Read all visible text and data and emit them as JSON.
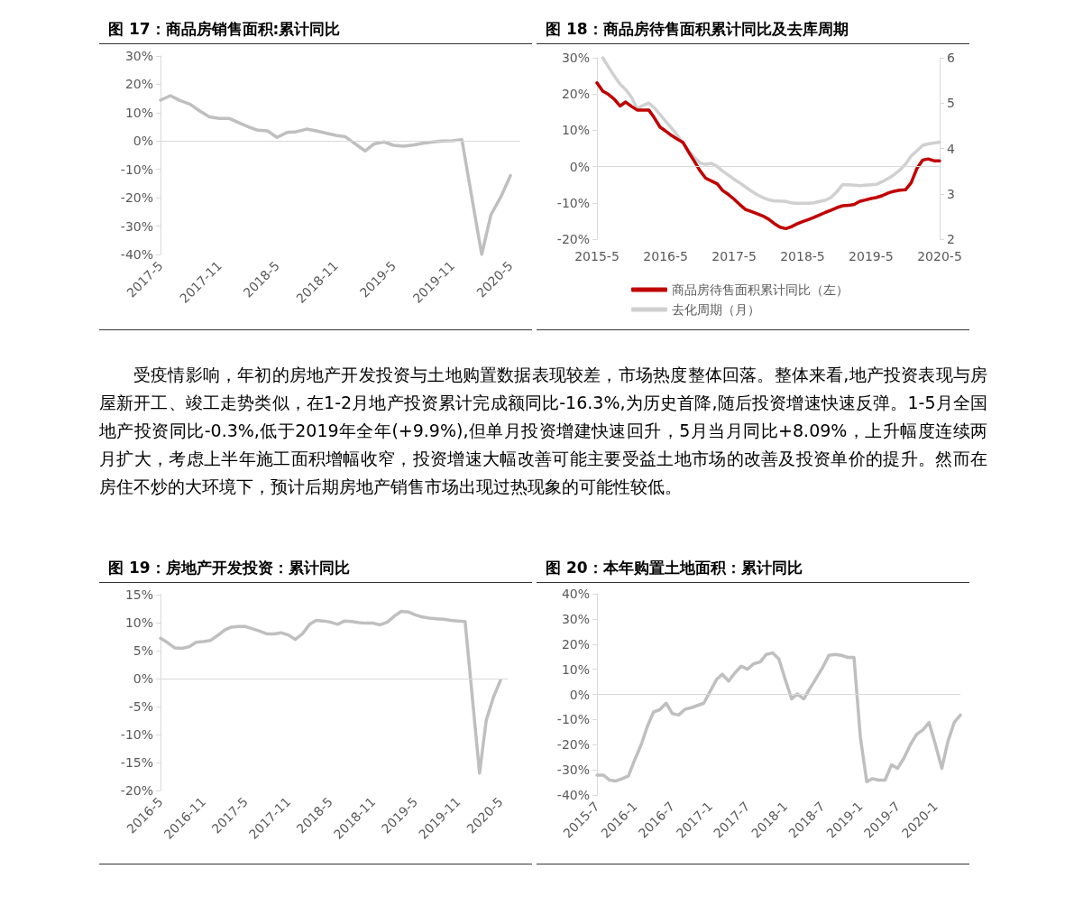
{
  "chart_data": [
    {
      "type": "line",
      "title": "图 17：商品房销售面积:累计同比",
      "x": [
        "2017-05",
        "2017-06",
        "2017-07",
        "2017-08",
        "2017-09",
        "2017-10",
        "2017-11",
        "2017-12",
        "2018-02",
        "2018-03",
        "2018-04",
        "2018-05",
        "2018-06",
        "2018-07",
        "2018-08",
        "2018-09",
        "2018-10",
        "2018-11",
        "2018-12",
        "2019-02",
        "2019-03",
        "2019-04",
        "2019-05",
        "2019-06",
        "2019-07",
        "2019-08",
        "2019-09",
        "2019-10",
        "2019-11",
        "2019-12",
        "2020-02",
        "2020-03",
        "2020-04",
        "2020-05"
      ],
      "series": [
        {
          "color": "#bfbfbf",
          "values": [
            14.4,
            16.0,
            14.3,
            13.0,
            10.6,
            8.5,
            8.0,
            8.0,
            5.0,
            3.8,
            3.6,
            1.3,
            3.0,
            3.3,
            4.2,
            3.6,
            2.8,
            2.0,
            1.5,
            -3.5,
            -1.0,
            -0.3,
            -1.5,
            -1.8,
            -1.4,
            -0.8,
            -0.3,
            0,
            0.1,
            0.5,
            -40,
            -26,
            -19.7,
            -12.2
          ]
        }
      ],
      "xlim": [
        "2017-05",
        "2020-06"
      ],
      "xticks": [
        {
          "value": "2017-05",
          "label": "2017-5"
        },
        {
          "value": "2017-11",
          "label": "2017-11"
        },
        {
          "value": "2018-05",
          "label": "2018-5"
        },
        {
          "value": "2018-11",
          "label": "2018-11"
        },
        {
          "value": "2019-05",
          "label": "2019-5"
        },
        {
          "value": "2019-11",
          "label": "2019-11"
        },
        {
          "value": "2020-05",
          "label": "2020-5"
        }
      ],
      "ylim": [
        -40,
        30
      ],
      "yticks": [
        {
          "value": -40,
          "label": "-40%"
        },
        {
          "value": -30,
          "label": "-30%"
        },
        {
          "value": -20,
          "label": "-20%"
        },
        {
          "value": -10,
          "label": "-10%"
        },
        {
          "value": 0,
          "label": "0%"
        },
        {
          "value": 10,
          "label": "10%"
        },
        {
          "value": 20,
          "label": "20%"
        },
        {
          "value": 30,
          "label": "30%"
        }
      ],
      "ref_lines": [
        {
          "axis": "y",
          "value": 0,
          "color": "#d9d9d9"
        }
      ]
    },
    {
      "type": "line",
      "title": "图 18：商品房待售面积累计同比及去库周期",
      "x": [
        "2015-05",
        "2015-06",
        "2015-07",
        "2015-08",
        "2015-09",
        "2015-10",
        "2015-11",
        "2015-12",
        "2016-01",
        "2016-02",
        "2016-03",
        "2016-04",
        "2016-05",
        "2016-06",
        "2016-07",
        "2016-08",
        "2016-09",
        "2016-10",
        "2016-11",
        "2016-12",
        "2017-01",
        "2017-02",
        "2017-03",
        "2017-04",
        "2017-05",
        "2017-06",
        "2017-07",
        "2017-08",
        "2017-09",
        "2017-10",
        "2017-11",
        "2017-12",
        "2018-01",
        "2018-02",
        "2018-03",
        "2018-04",
        "2018-05",
        "2018-06",
        "2018-07",
        "2018-08",
        "2018-09",
        "2018-10",
        "2018-11",
        "2018-12",
        "2019-01",
        "2019-02",
        "2019-03",
        "2019-04",
        "2019-05",
        "2019-06",
        "2019-07",
        "2019-08",
        "2019-09",
        "2019-10",
        "2019-11",
        "2019-12",
        "2020-01",
        "2020-02",
        "2020-03",
        "2020-04",
        "2020-05"
      ],
      "series": [
        {
          "name": "商品房待售面积累计同比（左）",
          "color": "#c00000",
          "values": [
            23.1,
            20.8,
            19.9,
            18.6,
            16.7,
            17.8,
            16.6,
            15.6,
            15.6,
            15.6,
            13.5,
            10.9,
            9.8,
            8.6,
            7.6,
            6.7,
            4.0,
            1.5,
            -1.2,
            -3.2,
            -4.0,
            -4.8,
            -6.6,
            -7.7,
            -9.0,
            -10.5,
            -11.8,
            -12.4,
            -13.0,
            -13.6,
            -14.5,
            -15.7,
            -16.7,
            -17.1,
            -16.6,
            -15.8,
            -15.2,
            -14.6,
            -14.0,
            -13.3,
            -12.6,
            -12.0,
            -11.3,
            -10.8,
            -10.7,
            -10.4,
            -9.6,
            -9.2,
            -8.8,
            -8.5,
            -8.0,
            -7.3,
            -6.8,
            -6.5,
            -6.4,
            -4.5,
            -0.5,
            1.8,
            2.1,
            1.6,
            1.6
          ]
        },
        {
          "name": "去化周期（月）",
          "color": "#d0d0d0",
          "axis": "y2",
          "values": [
            null,
            6.0,
            5.8,
            5.6,
            5.42,
            5.3,
            5.13,
            4.88,
            4.95,
            5.0,
            4.9,
            4.75,
            4.6,
            4.45,
            4.3,
            4.12,
            3.95,
            3.8,
            3.68,
            3.65,
            3.67,
            3.6,
            3.5,
            3.41,
            3.32,
            3.24,
            3.15,
            3.06,
            2.98,
            2.92,
            2.87,
            2.84,
            2.84,
            2.83,
            2.8,
            2.79,
            2.79,
            2.79,
            2.8,
            2.83,
            2.86,
            2.92,
            3.05,
            3.2,
            3.2,
            3.19,
            3.18,
            3.19,
            3.2,
            3.21,
            3.27,
            3.34,
            3.42,
            3.52,
            3.65,
            3.83,
            3.95,
            4.07,
            4.1,
            4.12,
            4.14
          ]
        }
      ],
      "xlim": [
        "2015-05",
        "2020-05"
      ],
      "xticks": [
        {
          "value": "2015-05",
          "label": "2015-5"
        },
        {
          "value": "2016-05",
          "label": "2016-5"
        },
        {
          "value": "2017-05",
          "label": "2017-5"
        },
        {
          "value": "2018-05",
          "label": "2018-5"
        },
        {
          "value": "2019-05",
          "label": "2019-5"
        },
        {
          "value": "2020-05",
          "label": "2020-5"
        }
      ],
      "ylim": [
        -20,
        30
      ],
      "yticks": [
        {
          "value": -20,
          "label": "-20%"
        },
        {
          "value": -10,
          "label": "-10%"
        },
        {
          "value": 0,
          "label": "0%"
        },
        {
          "value": 10,
          "label": "10%"
        },
        {
          "value": 20,
          "label": "20%"
        },
        {
          "value": 30,
          "label": "30%"
        }
      ],
      "y2lim": [
        2,
        6
      ],
      "y2ticks": [
        2,
        3,
        4,
        5,
        6
      ],
      "legend": "bottom",
      "ref_lines": [
        {
          "axis": "y",
          "value": 0,
          "color": "#d9d9d9"
        }
      ]
    },
    {
      "type": "other",
      "annotations": [
        "受疫情影响，年初的房地产开发投资与土地购置数据表现较差，市场热度整体回落。整体来看,地产投资表现与房屋新开工、竣工走势类似，在1-2月地产投资累计完成额同比-16.3%,为历史首降,随后投资增速快速反弹。1-5月全国地产投资同比-0.3%,低于2019年全年(+9.9%),但单月投资增建快速回升，5月当月同比+8.09%，上升幅度连续两月扩大，考虑上半年施工面积增幅收窄，投资增速大幅改善可能主要受益土地市场的改善及投资单价的提升。然而在房住不炒的大环境下，预计后期房地产销售市场出现过热现象的可能性较低。"
      ]
    },
    {
      "type": "line",
      "title": "图 19：房地产开发投资：累计同比",
      "x": [
        "2016-05",
        "2016-06",
        "2016-07",
        "2016-08",
        "2016-09",
        "2016-10",
        "2016-11",
        "2016-12",
        "2017-01",
        "2017-02",
        "2017-03",
        "2017-04",
        "2017-05",
        "2017-06",
        "2017-07",
        "2017-08",
        "2017-09",
        "2017-10",
        "2017-11",
        "2017-12",
        "2018-01",
        "2018-02",
        "2018-03",
        "2018-04",
        "2018-05",
        "2018-06",
        "2018-07",
        "2018-08",
        "2018-09",
        "2018-10",
        "2018-11",
        "2018-12",
        "2019-01",
        "2019-02",
        "2019-03",
        "2019-04",
        "2019-05",
        "2019-06",
        "2019-07",
        "2019-08",
        "2019-09",
        "2019-10",
        "2019-11",
        "2019-12",
        "2020-02",
        "2020-03",
        "2020-04",
        "2020-05"
      ],
      "series": [
        {
          "color": "#bfbfbf",
          "values": [
            7.2,
            6.4,
            5.5,
            5.4,
            5.7,
            6.5,
            6.6,
            6.8,
            7.7,
            8.7,
            9.2,
            9.3,
            9.3,
            8.9,
            8.5,
            8.0,
            8.0,
            8.2,
            7.8,
            7.0,
            8.0,
            9.7,
            10.4,
            10.3,
            10.1,
            9.7,
            10.3,
            10.2,
            10.0,
            9.9,
            9.9,
            9.6,
            10.1,
            11.2,
            12.0,
            11.9,
            11.4,
            11.0,
            10.8,
            10.7,
            10.6,
            10.4,
            10.3,
            10.2,
            -16.9,
            -7.4,
            -3.3,
            -0.3
          ]
        }
      ],
      "xlim": [
        "2016-05",
        "2020-06"
      ],
      "xticks": [
        {
          "value": "2016-05",
          "label": "2016-5"
        },
        {
          "value": "2016-11",
          "label": "2016-11"
        },
        {
          "value": "2017-05",
          "label": "2017-5"
        },
        {
          "value": "2017-11",
          "label": "2017-11"
        },
        {
          "value": "2018-05",
          "label": "2018-5"
        },
        {
          "value": "2018-11",
          "label": "2018-11"
        },
        {
          "value": "2019-05",
          "label": "2019-5"
        },
        {
          "value": "2019-11",
          "label": "2019-11"
        },
        {
          "value": "2020-05",
          "label": "2020-5"
        }
      ],
      "ylim": [
        -20,
        15
      ],
      "yticks": [
        {
          "value": -20,
          "label": "-20%"
        },
        {
          "value": -15,
          "label": "-15%"
        },
        {
          "value": -10,
          "label": "-10%"
        },
        {
          "value": -5,
          "label": "-5%"
        },
        {
          "value": 0,
          "label": "0%"
        },
        {
          "value": 5,
          "label": "5%"
        },
        {
          "value": 10,
          "label": "10%"
        },
        {
          "value": 15,
          "label": "15%"
        }
      ],
      "ref_lines": [
        {
          "axis": "y",
          "value": 0,
          "color": "#d9d9d9"
        }
      ]
    },
    {
      "type": "line",
      "title": "图 20：本年购置土地面积：累计同比",
      "x": [
        "2015-07",
        "2015-08",
        "2015-09",
        "2015-10",
        "2015-11",
        "2015-12",
        "2016-01",
        "2016-02",
        "2016-03",
        "2016-04",
        "2016-05",
        "2016-06",
        "2016-07",
        "2016-08",
        "2016-09",
        "2016-10",
        "2016-11",
        "2016-12",
        "2017-01",
        "2017-02",
        "2017-03",
        "2017-04",
        "2017-05",
        "2017-06",
        "2017-07",
        "2017-08",
        "2017-09",
        "2017-10",
        "2017-11",
        "2017-12",
        "2018-01",
        "2018-02",
        "2018-03",
        "2018-04",
        "2018-05",
        "2018-06",
        "2018-07",
        "2018-08",
        "2018-09",
        "2018-10",
        "2018-11",
        "2018-12",
        "2019-01",
        "2019-02",
        "2019-03",
        "2019-04",
        "2019-05",
        "2019-06",
        "2019-07",
        "2019-08",
        "2019-09",
        "2019-10",
        "2019-11",
        "2019-12",
        "2020-01",
        "2020-02",
        "2020-03",
        "2020-04",
        "2020-05"
      ],
      "series": [
        {
          "color": "#bfbfbf",
          "values": [
            -32.1,
            -32.1,
            -34.1,
            -34.4,
            -33.5,
            -32.4,
            -25.9,
            -20,
            -12.9,
            -7,
            -6.1,
            -3.5,
            -7.6,
            -8.2,
            -5.9,
            -5.3,
            -4.4,
            -3.5,
            1.2,
            5.9,
            8,
            5.3,
            8.5,
            11.2,
            10,
            12.2,
            12.9,
            15.9,
            16.5,
            14.1,
            5.9,
            -1.8,
            0.2,
            -1.8,
            2.4,
            6.5,
            10.6,
            15.5,
            15.9,
            15.5,
            14.7,
            14.7,
            -17,
            -34.7,
            -33.5,
            -34.1,
            -34.1,
            -28,
            -29.4,
            -25.3,
            -20,
            -15.9,
            -14.1,
            -11.2,
            -20,
            -29.4,
            -18.8,
            -11.2,
            -8.2
          ]
        }
      ],
      "xlim": [
        "2015-07",
        "2020-05"
      ],
      "xticks": [
        {
          "value": "2015-07",
          "label": "2015-7"
        },
        {
          "value": "2016-01",
          "label": "2016-1"
        },
        {
          "value": "2016-07",
          "label": "2016-7"
        },
        {
          "value": "2017-01",
          "label": "2017-1"
        },
        {
          "value": "2017-07",
          "label": "2017-7"
        },
        {
          "value": "2018-01",
          "label": "2018-1"
        },
        {
          "value": "2018-07",
          "label": "2018-7"
        },
        {
          "value": "2019-01",
          "label": "2019-1"
        },
        {
          "value": "2019-07",
          "label": "2019-7"
        },
        {
          "value": "2020-01",
          "label": "2020-1"
        }
      ],
      "ylim": [
        -40,
        40
      ],
      "yticks": [
        {
          "value": -40,
          "label": "-40%"
        },
        {
          "value": -30,
          "label": "-30%"
        },
        {
          "value": -20,
          "label": "-20%"
        },
        {
          "value": -10,
          "label": "-10%"
        },
        {
          "value": 0,
          "label": "0%"
        },
        {
          "value": 10,
          "label": "10%"
        },
        {
          "value": 20,
          "label": "20%"
        },
        {
          "value": 30,
          "label": "30%"
        },
        {
          "value": 40,
          "label": "40%"
        }
      ],
      "ref_lines": [
        {
          "axis": "y",
          "value": 0,
          "color": "#d9d9d9"
        }
      ]
    }
  ]
}
